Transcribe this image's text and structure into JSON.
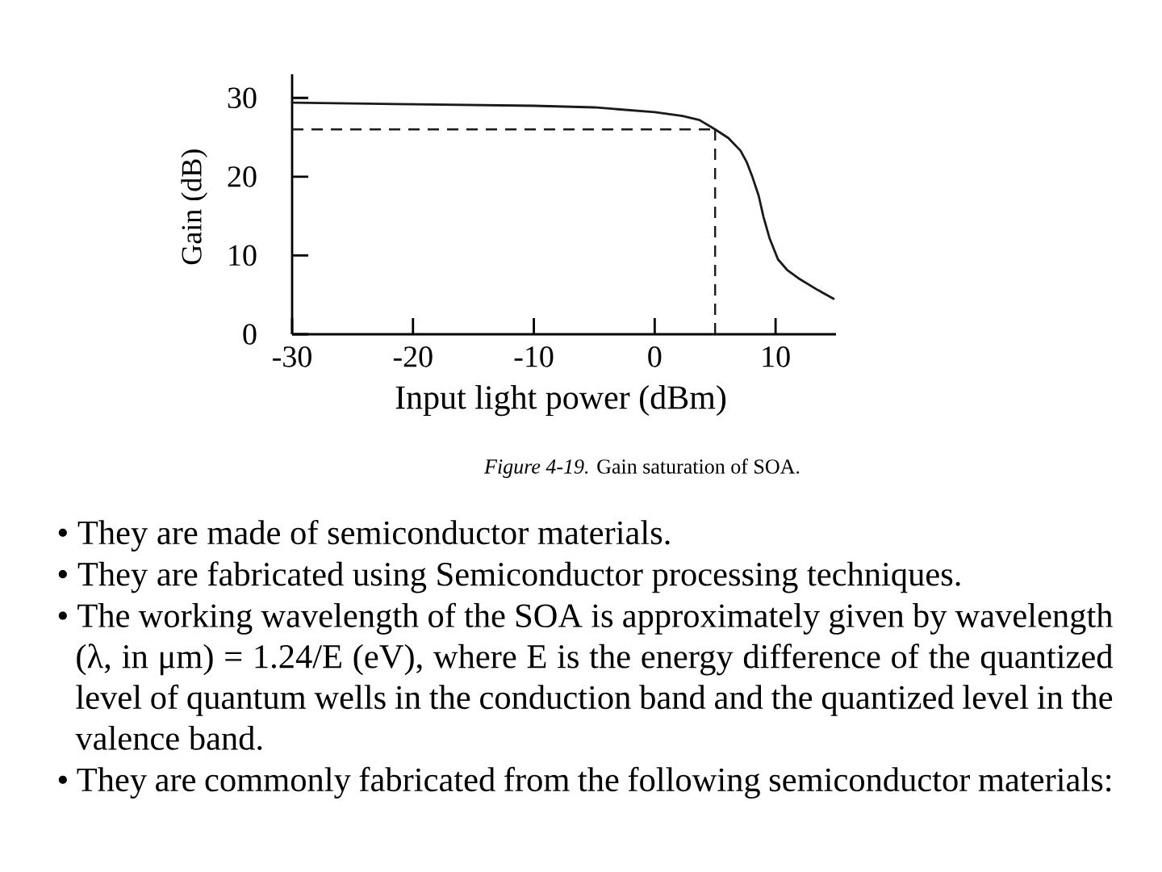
{
  "chart_data": {
    "type": "line",
    "xlabel": "Input light power (dBm)",
    "ylabel": "Gain (dB)",
    "x": [
      -30,
      -20,
      -10,
      -5,
      0,
      2.3,
      3.7,
      5,
      6.1,
      7.1,
      7.6,
      8.1,
      8.6,
      9,
      9.5,
      10.2,
      11,
      11.9,
      13.4,
      14.8
    ],
    "values": [
      29.4,
      29.2,
      29,
      28.8,
      28.2,
      27.7,
      27.2,
      26,
      24.9,
      23.3,
      21.9,
      19.9,
      17.6,
      14.9,
      12.2,
      9.5,
      8.1,
      7.1,
      5.7,
      4.5
    ],
    "color": "#1a1a1a",
    "xlim": [
      -30,
      15
    ],
    "ylim": [
      0,
      33
    ],
    "xticks": [
      -30,
      -20,
      -10,
      0,
      10
    ],
    "yticks": [
      0,
      10,
      20,
      30
    ],
    "ref_lines": [
      {
        "axis": "y",
        "value": 26,
        "color": "#1a1a1a",
        "line_style": "dashed"
      },
      {
        "axis": "x",
        "value": 5,
        "color": "#1a1a1a",
        "line_style": "dashed"
      }
    ],
    "annotations": [
      "*Figure 4-19.* Gain saturation of SOA.",
      "• They are made of semiconductor materials.",
      "• They are fabricated using Semiconductor processing techniques.",
      "• The working wavelength of the SOA is approximately given by wavelength (λ, in μm) = 1.24/E (eV), where E is the energy difference of the quantized level of quantum wells in the conduction band and the quantized level in the valence band.",
      "• They are commonly fabricated from the following semiconductor materials:"
    ]
  }
}
